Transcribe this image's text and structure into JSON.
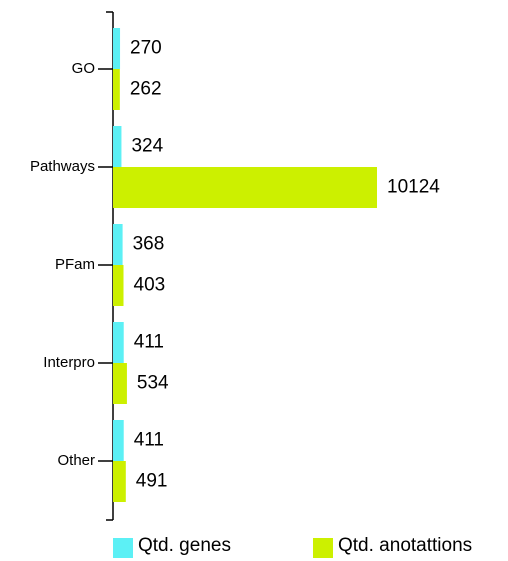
{
  "chart_data": {
    "type": "bar",
    "orientation": "horizontal",
    "categories": [
      "GO",
      "Pathways",
      "PFam",
      "Interpro",
      "Other"
    ],
    "series": [
      {
        "name": "Qtd. genes",
        "color": "#5cf0f5",
        "values": [
          270,
          324,
          368,
          411,
          411
        ]
      },
      {
        "name": "Qtd. anotattions",
        "color": "#ccf000",
        "values": [
          262,
          10124,
          403,
          534,
          491
        ]
      }
    ]
  }
}
